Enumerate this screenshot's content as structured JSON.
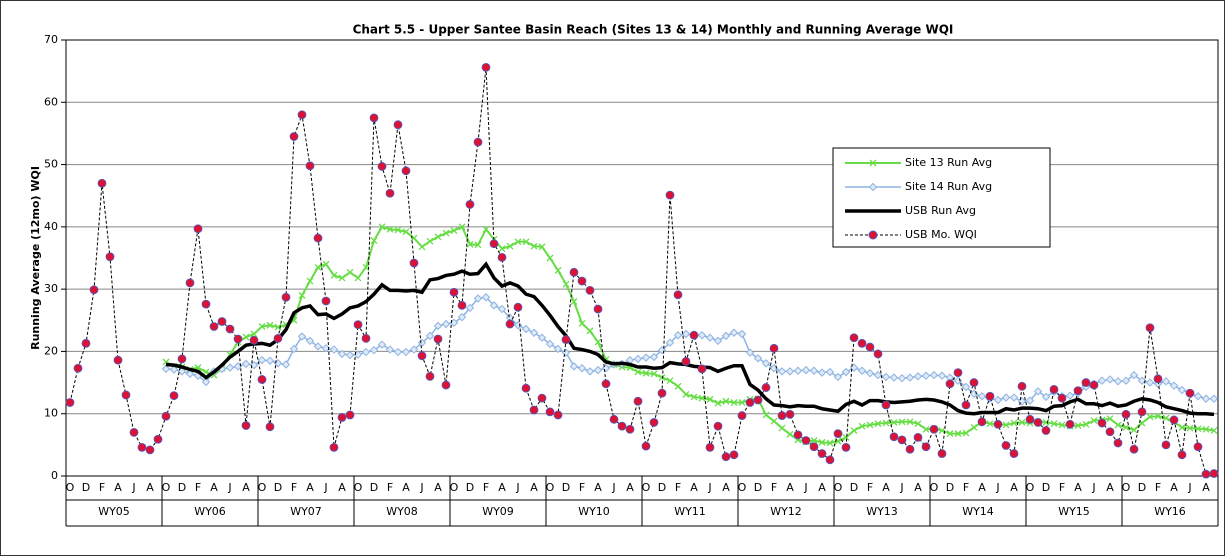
{
  "chart_data": {
    "type": "line",
    "title": "Chart 5.5 - Upper Santee Basin Reach (Sites 13 & 14) Monthly and Running Average WQI",
    "y_label": "Running Average (12mo) WQI",
    "ylim": [
      0,
      70
    ],
    "yticks": [
      0,
      10,
      20,
      30,
      40,
      50,
      60,
      70
    ],
    "grid": true,
    "legend": "upper right",
    "categories": [
      "O",
      null,
      "D",
      null,
      "F",
      null,
      "A",
      null,
      "J",
      null,
      "A",
      null,
      "O",
      null,
      "D",
      null,
      "F",
      null,
      "A",
      null,
      "J",
      null,
      "A",
      null,
      "O",
      null,
      "D",
      null,
      "F",
      null,
      "A",
      null,
      "J",
      null,
      "A",
      null,
      "O",
      null,
      "D",
      null,
      "F",
      null,
      "A",
      null,
      "J",
      null,
      "A",
      null,
      "O",
      null,
      "D",
      null,
      "F",
      null,
      "A",
      null,
      "J",
      null,
      "A",
      null,
      "O",
      null,
      "D",
      null,
      "F",
      null,
      "A",
      null,
      "J",
      null,
      "A",
      null,
      "O",
      null,
      "D",
      null,
      "F",
      null,
      "A",
      null,
      "J",
      null,
      "A",
      null,
      "O",
      null,
      "D",
      null,
      "F",
      null,
      "A",
      null,
      "J",
      null,
      "A",
      null,
      "O",
      null,
      "D",
      null,
      "F",
      null,
      "A",
      null,
      "J",
      null,
      "A",
      null,
      "O",
      null,
      "D",
      null,
      "F",
      null,
      "A",
      null,
      "J",
      null,
      "A",
      null,
      "O",
      null,
      "D",
      null,
      "F",
      null,
      "A",
      null,
      "J",
      null,
      "A",
      null,
      "O",
      null,
      "D",
      null,
      "F",
      null,
      "A",
      null,
      "J",
      null,
      "A",
      null
    ],
    "x_groups": [
      "WY05",
      "WY06",
      "WY07",
      "WY08",
      "WY09",
      "WY10",
      "WY11",
      "WY12",
      "WY13",
      "WY14",
      "WY15",
      "WY16"
    ],
    "series": [
      {
        "name": "Site 13 Run Avg",
        "color": "#66dd44",
        "marker": "x",
        "width": 2,
        "dash": false,
        "values": [
          null,
          null,
          null,
          null,
          null,
          null,
          null,
          null,
          null,
          null,
          null,
          null,
          18.3,
          17.6,
          17.5,
          17.1,
          17.4,
          16.7,
          16.2,
          17.3,
          19.5,
          21.5,
          22.3,
          22.8,
          24,
          24.2,
          23.9,
          24.3,
          25,
          29,
          31.3,
          33.5,
          34,
          32.2,
          31.8,
          32.7,
          31.8,
          33.5,
          37.8,
          40,
          39.6,
          39.5,
          39.2,
          38.2,
          36.8,
          37.7,
          38.4,
          39,
          39.4,
          40,
          37.2,
          37.1,
          39.6,
          38,
          36.5,
          36.9,
          37.6,
          37.6,
          36.9,
          36.8,
          35,
          33,
          30.8,
          28,
          24.5,
          23.3,
          21.5,
          18.7,
          17.9,
          17.5,
          17.4,
          16.7,
          16.5,
          16.4,
          15.8,
          15.3,
          14.4,
          13.1,
          12.7,
          12.5,
          12.3,
          11.7,
          12,
          11.8,
          11.8,
          12.3,
          12.4,
          9.8,
          8.8,
          7.7,
          6.7,
          5.8,
          5.5,
          5.7,
          5.4,
          5.3,
          5.6,
          6.2,
          7.3,
          8,
          8.2,
          8.4,
          8.5,
          8.6,
          8.7,
          8.7,
          8.4,
          7.5,
          7.6,
          7.3,
          6.8,
          6.8,
          6.9,
          7.8,
          8.7,
          8.4,
          8.3,
          8.2,
          8.5,
          8.6,
          8.5,
          8.7,
          8.6,
          8.4,
          8.2,
          8,
          8.1,
          8.3,
          8.9,
          9,
          9.2,
          8.2,
          7.8,
          7.4,
          8.5,
          9.5,
          9.6,
          9.3,
          8.7,
          7.8,
          7.7,
          7.6,
          7.5,
          7.3
        ]
      },
      {
        "name": "Site 14 Run Avg",
        "color": "#8db3e2",
        "marker": "diamond",
        "width": 1.5,
        "dash": false,
        "values": [
          null,
          null,
          null,
          null,
          null,
          null,
          null,
          null,
          null,
          null,
          null,
          null,
          17.2,
          17.1,
          16.8,
          16.4,
          16.1,
          15.1,
          16.8,
          17.2,
          17.4,
          17.6,
          18,
          17.8,
          18.6,
          18.5,
          18.1,
          17.9,
          20.4,
          22.4,
          21.7,
          20.8,
          20.5,
          20.3,
          19.6,
          19.4,
          19.5,
          19.9,
          20.2,
          21.1,
          20.3,
          19.9,
          19.9,
          20.3,
          21.4,
          22.5,
          24.1,
          24.4,
          24.6,
          25.5,
          27,
          28.5,
          28.7,
          27.4,
          26.8,
          25.4,
          24.2,
          23.6,
          23,
          22.2,
          21.2,
          20.4,
          19.8,
          17.6,
          17.3,
          16.8,
          17,
          17.3,
          17.9,
          18,
          18.6,
          18.8,
          19,
          19.1,
          20.2,
          21.4,
          22.6,
          22.8,
          22.7,
          22.6,
          22.2,
          21.7,
          22.5,
          23,
          22.8,
          19.8,
          18.9,
          18.1,
          17.3,
          16.8,
          16.8,
          16.9,
          17,
          16.9,
          16.6,
          16.7,
          15.9,
          16.7,
          17.4,
          16.9,
          16.5,
          16.2,
          15.9,
          15.8,
          15.7,
          15.8,
          16,
          16.1,
          16.2,
          16.1,
          15.8,
          15.3,
          14.3,
          13.2,
          12.8,
          12.4,
          12.2,
          12.6,
          12.6,
          12,
          12.1,
          13.6,
          12.7,
          13.5,
          12.8,
          12.9,
          13.3,
          14.3,
          14.8,
          15.3,
          15.5,
          15.2,
          15.3,
          16.2,
          15.3,
          15,
          14.8,
          15.2,
          14.5,
          13.8,
          13.3,
          12.8,
          12.4,
          12.4
        ]
      },
      {
        "name": "USB Run Avg",
        "color": "#000000",
        "marker": "none",
        "width": 3.5,
        "dash": false,
        "values": [
          null,
          null,
          null,
          null,
          null,
          null,
          null,
          null,
          null,
          null,
          null,
          null,
          17.9,
          17.8,
          17.5,
          17.1,
          16.8,
          15.8,
          16.7,
          17.8,
          19.1,
          20,
          21,
          21.2,
          21.3,
          21,
          21.9,
          23.5,
          26.2,
          27,
          27.3,
          25.9,
          26,
          25.3,
          26,
          27,
          27.3,
          28,
          29.2,
          30.7,
          29.8,
          29.8,
          29.7,
          29.8,
          29.5,
          31.5,
          31.7,
          32.2,
          32.4,
          32.9,
          32.4,
          32.5,
          34,
          31.8,
          30.5,
          31,
          30.5,
          29.2,
          28.8,
          27.4,
          25.8,
          24,
          22.5,
          20.5,
          20.3,
          20,
          19.5,
          18.3,
          18,
          18.1,
          17.9,
          17.5,
          17.5,
          17.3,
          17.4,
          18.2,
          18,
          17.9,
          17.6,
          17.5,
          17.4,
          16.8,
          17.3,
          17.7,
          17.7,
          14.7,
          13.8,
          12.4,
          11.4,
          11.3,
          11.1,
          11.3,
          11.2,
          11.2,
          10.8,
          10.6,
          10.4,
          11.5,
          12,
          11.4,
          12.1,
          12.1,
          11.9,
          11.8,
          11.9,
          12,
          12.2,
          12.3,
          12.2,
          11.9,
          11.4,
          10.5,
          10.1,
          10,
          10.2,
          10.2,
          10.2,
          10.8,
          10.6,
          10.9,
          10.9,
          10.8,
          10.5,
          11.2,
          11.3,
          11.9,
          12.3,
          11.6,
          11.6,
          11.3,
          11.7,
          11.2,
          11.4,
          12,
          12.4,
          12.2,
          11.8,
          11.1,
          10.8,
          10.5,
          10.1,
          10,
          10,
          9.9
        ]
      },
      {
        "name": "USB Mo. WQI",
        "color": "#000000",
        "marker": "circle",
        "marker_color": "#dd1133",
        "width": 1,
        "dash": true,
        "values": [
          11.8,
          17.3,
          21.3,
          29.9,
          47,
          35.2,
          18.6,
          13,
          7,
          4.6,
          4.2,
          5.9,
          9.6,
          12.9,
          18.8,
          31,
          39.7,
          27.6,
          24,
          24.8,
          23.6,
          22,
          8.1,
          21.8,
          15.5,
          7.9,
          22.1,
          28.7,
          54.5,
          58,
          49.8,
          38.2,
          28.1,
          4.6,
          9.4,
          9.8,
          24.3,
          22.1,
          57.5,
          49.7,
          45.4,
          56.4,
          49,
          34.2,
          19.3,
          16,
          22,
          14.6,
          29.5,
          27.4,
          43.6,
          53.6,
          65.6,
          37.3,
          35.1,
          24.4,
          27.1,
          14.1,
          10.6,
          12.5,
          10.3,
          9.8,
          21.9,
          32.7,
          31.3,
          29.8,
          26.8,
          14.8,
          9.1,
          8,
          7.5,
          12,
          4.8,
          8.6,
          13.3,
          45.1,
          29.1,
          18.4,
          22.6,
          17.2,
          4.6,
          8,
          3.1,
          3.4,
          9.7,
          11.8,
          12.2,
          14.2,
          20.5,
          9.7,
          9.9,
          6.6,
          5.7,
          4.7,
          3.6,
          2.6,
          6.8,
          4.6,
          22.2,
          21.3,
          20.7,
          19.6,
          11.4,
          6.3,
          5.8,
          4.3,
          6.2,
          4.7,
          7.5,
          3.6,
          14.8,
          16.6,
          11.4,
          15,
          8.7,
          12.8,
          8.3,
          4.9,
          3.6,
          14.4,
          9.1,
          8.6,
          7.3,
          13.9,
          12.5,
          8.3,
          13.7,
          15,
          14.6,
          8.5,
          7.1,
          5.3,
          9.9,
          4.3,
          10.3,
          23.8,
          15.6,
          5,
          9,
          3.4,
          13.3,
          4.7,
          0.3,
          0.4
        ]
      }
    ]
  }
}
